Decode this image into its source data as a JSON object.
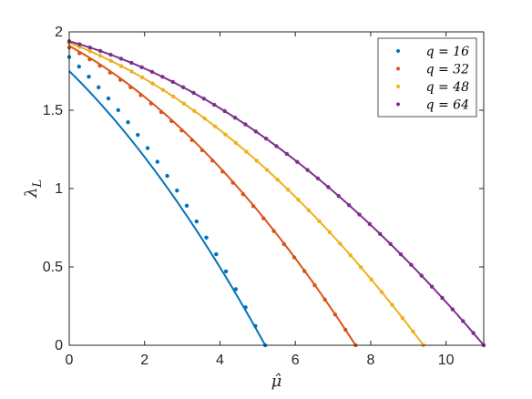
{
  "chart_data": {
    "type": "line",
    "xlabel": "μ̂",
    "ylabel": "λ",
    "ylabel_sub": "L",
    "xlim": [
      0,
      11
    ],
    "ylim": [
      0,
      2
    ],
    "xticks": [
      0,
      2,
      4,
      6,
      8,
      10
    ],
    "yticks": [
      0,
      0.5,
      1,
      1.5,
      2
    ],
    "xtick_labels": [
      "0",
      "2",
      "4",
      "6",
      "8",
      "10"
    ],
    "ytick_labels": [
      "0",
      "0.5",
      "1",
      "1.5",
      "2"
    ],
    "grid": false,
    "legend_position": "top-right",
    "legend_symbol": "•",
    "series": [
      {
        "name": "q = 16",
        "color": "#0072BD",
        "line": {
          "y0": 1.75,
          "x_end": 5.2,
          "curvature": 0.3
        },
        "dots": {
          "y0": 1.84,
          "x_end": 5.2,
          "curvature": 0.35,
          "n": 20
        }
      },
      {
        "name": "q = 32",
        "color": "#D95319",
        "line": {
          "y0": 1.91,
          "x_end": 7.6,
          "curvature": 0.48
        },
        "dots": {
          "y0": 1.9,
          "x_end": 7.6,
          "curvature": 0.48,
          "n": 28
        }
      },
      {
        "name": "q = 48",
        "color": "#EDB120",
        "line": {
          "y0": 1.93,
          "x_end": 9.4,
          "curvature": 0.56
        },
        "dots": {
          "y0": 1.93,
          "x_end": 9.4,
          "curvature": 0.56,
          "n": 34
        }
      },
      {
        "name": "q = 64",
        "color": "#7E2F8E",
        "line": {
          "y0": 1.94,
          "x_end": 11.0,
          "curvature": 0.62
        },
        "dots": {
          "y0": 1.94,
          "x_end": 11.0,
          "curvature": 0.62,
          "n": 40
        }
      }
    ]
  }
}
